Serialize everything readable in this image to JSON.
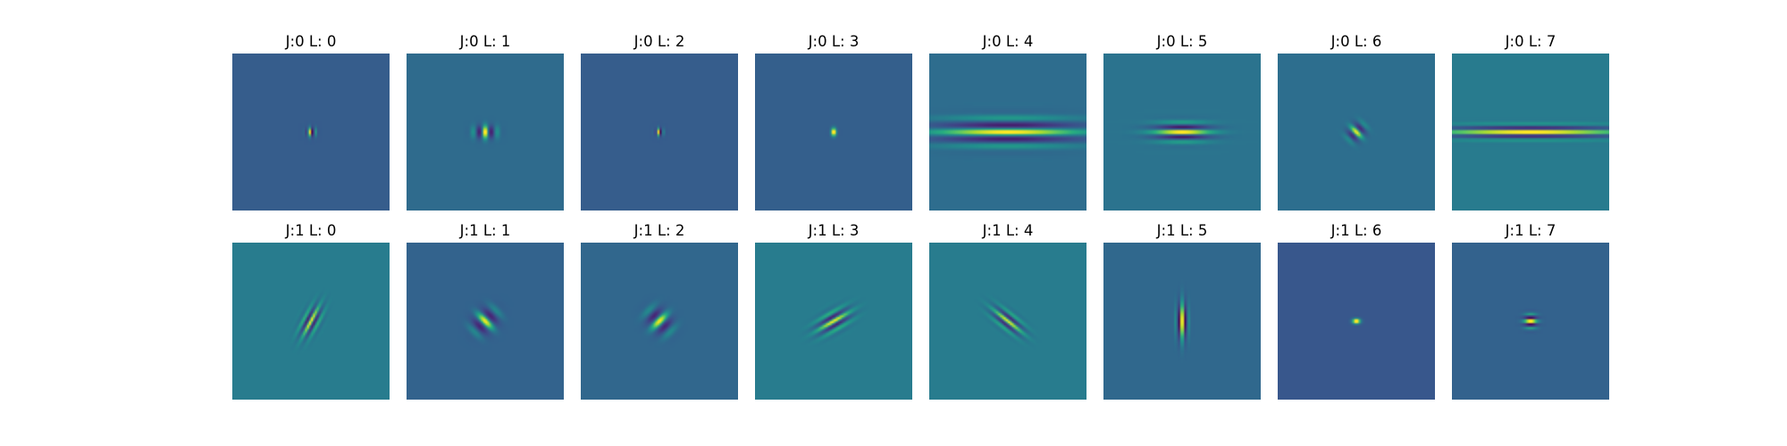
{
  "figure": {
    "background": "#ffffff"
  },
  "chart_data": [
    {
      "type": "heatmap",
      "title": "J:0 L: 0",
      "bg": "#365c8d",
      "pattern": {
        "kind": "gabor",
        "theta": 0,
        "sx": 3.5,
        "sy": 3.5,
        "freq": 0.14,
        "phase": 1.57,
        "amp": 1,
        "cx": 0,
        "cy": 0
      }
    },
    {
      "type": "heatmap",
      "title": "J:0 L: 1",
      "bg": "#2f6b8e",
      "pattern": {
        "kind": "gabor",
        "theta": 0,
        "sx": 8,
        "sy": 5,
        "freq": 0.07,
        "phase": 0,
        "amp": 1,
        "cx": 0,
        "cy": 0
      }
    },
    {
      "type": "heatmap",
      "title": "J:0 L: 2",
      "bg": "#365c8d",
      "pattern": {
        "kind": "gabor",
        "theta": 0,
        "sx": 3,
        "sy": 3,
        "freq": 0.16,
        "phase": 1.57,
        "amp": 1,
        "cx": 0,
        "cy": 0
      }
    },
    {
      "type": "heatmap",
      "title": "J:0 L: 3",
      "bg": "#355f8d",
      "pattern": {
        "kind": "gabor",
        "theta": 0,
        "sx": 2.5,
        "sy": 3,
        "freq": 0.05,
        "phase": 0,
        "amp": 1,
        "cx": 0,
        "cy": 0
      }
    },
    {
      "type": "heatmap",
      "title": "J:0 L: 4",
      "bg": "#2e6e8e",
      "pattern": {
        "kind": "gabor",
        "theta": 1.5708,
        "sx": 10,
        "sy": 55,
        "freq": 0.06,
        "phase": 0,
        "amp": 1,
        "cx": 0,
        "cy": 0
      }
    },
    {
      "type": "heatmap",
      "title": "J:0 L: 5",
      "bg": "#2b748e",
      "pattern": {
        "kind": "gabor",
        "theta": 1.5708,
        "sx": 7,
        "sy": 22,
        "freq": 0.085,
        "phase": 0,
        "amp": 1,
        "cx": 0,
        "cy": 0
      }
    },
    {
      "type": "heatmap",
      "title": "J:0 L: 6",
      "bg": "#2e6f8e",
      "pattern": {
        "kind": "gabor",
        "theta": -0.7854,
        "sx": 7,
        "sy": 6,
        "freq": 0.075,
        "phase": 0,
        "amp": 1,
        "cx": 0,
        "cy": 0
      }
    },
    {
      "type": "heatmap",
      "title": "J:0 L: 7",
      "bg": "#297b8e",
      "pattern": {
        "kind": "gabor",
        "theta": 1.5708,
        "sx": 5,
        "sy": 70,
        "freq": 0.1,
        "phase": 0,
        "amp": 1,
        "cx": 0,
        "cy": 0
      }
    },
    {
      "type": "heatmap",
      "title": "J:1 L: 0",
      "bg": "#287c8e",
      "pattern": {
        "kind": "gabor",
        "theta": 0.49,
        "sx": 6,
        "sy": 13,
        "freq": 0.12,
        "phase": 0,
        "amp": 1,
        "cx": 0,
        "cy": 0
      }
    },
    {
      "type": "heatmap",
      "title": "J:1 L: 1",
      "bg": "#33638d",
      "pattern": {
        "kind": "gabor",
        "theta": -0.7854,
        "sx": 10,
        "sy": 8,
        "freq": 0.055,
        "phase": 0,
        "amp": 1,
        "cx": 0,
        "cy": 0
      }
    },
    {
      "type": "heatmap",
      "title": "J:1 L: 2",
      "bg": "#31668e",
      "pattern": {
        "kind": "gabor",
        "theta": 0.7854,
        "sx": 10,
        "sy": 8,
        "freq": 0.055,
        "phase": 0,
        "amp": 1,
        "cx": 0,
        "cy": 0
      }
    },
    {
      "type": "heatmap",
      "title": "J:1 L: 3",
      "bg": "#287c8e",
      "pattern": {
        "kind": "gabor",
        "theta": 1.05,
        "sx": 7,
        "sy": 14,
        "freq": 0.1,
        "phase": 0,
        "amp": 1,
        "cx": 0,
        "cy": 0
      }
    },
    {
      "type": "heatmap",
      "title": "J:1 L: 4",
      "bg": "#287c8e",
      "pattern": {
        "kind": "gabor",
        "theta": -0.9,
        "sx": 6,
        "sy": 14,
        "freq": 0.11,
        "phase": 0,
        "amp": 1,
        "cx": 0,
        "cy": 0
      }
    },
    {
      "type": "heatmap",
      "title": "J:1 L: 5",
      "bg": "#31688e",
      "pattern": {
        "kind": "gabor",
        "theta": 0,
        "sx": 4,
        "sy": 14,
        "freq": 0.13,
        "phase": 0,
        "amp": 1,
        "cx": 0,
        "cy": 0
      }
    },
    {
      "type": "heatmap",
      "title": "J:1 L: 6",
      "bg": "#38588c",
      "pattern": {
        "kind": "gabor",
        "theta": 1.5708,
        "sx": 2.5,
        "sy": 3,
        "freq": 0.05,
        "phase": 0,
        "amp": 1,
        "cx": 0,
        "cy": 0
      }
    },
    {
      "type": "heatmap",
      "title": "J:1 L: 7",
      "bg": "#33618d",
      "pattern": {
        "kind": "gabor",
        "theta": 1.5708,
        "sx": 5,
        "sy": 5,
        "freq": 0.12,
        "phase": 0,
        "amp": 1,
        "cx": 0,
        "cy": 0
      }
    }
  ]
}
